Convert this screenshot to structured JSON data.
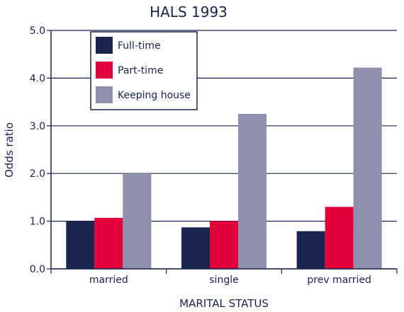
{
  "chart_data": {
    "type": "bar",
    "title": "HALS 1993",
    "xlabel": "MARITAL STATUS",
    "ylabel": "Odds ratio",
    "categories": [
      "married",
      "single",
      "prev married"
    ],
    "series": [
      {
        "name": "Full-time",
        "color": "#1b2550",
        "values": [
          1.0,
          0.87,
          0.79
        ]
      },
      {
        "name": "Part-time",
        "color": "#e4003a",
        "values": [
          1.07,
          1.0,
          1.3
        ]
      },
      {
        "name": "Keeping house",
        "color": "#8f8fae",
        "values": [
          2.0,
          3.25,
          4.22
        ]
      }
    ],
    "ylim": [
      0,
      5
    ],
    "yticks": [
      "0.0",
      "1.0",
      "2.0",
      "3.0",
      "4.0",
      "5.0"
    ],
    "grid": true,
    "legend_position": "top-left"
  }
}
